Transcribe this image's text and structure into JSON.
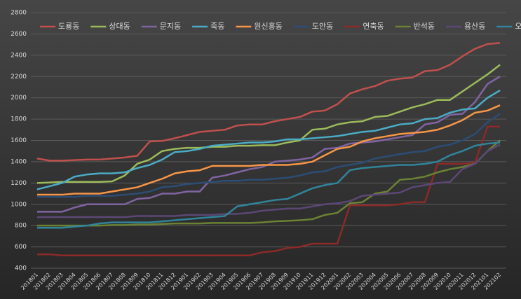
{
  "chart_data": {
    "type": "line",
    "categories": [
      "201801",
      "201802",
      "201803",
      "201804",
      "201805",
      "201806",
      "201807",
      "201808",
      "201809",
      "201810",
      "201811",
      "201812",
      "201901",
      "201902",
      "201903",
      "201904",
      "201905",
      "201906",
      "201907",
      "201908",
      "201909",
      "201910",
      "201911",
      "201912",
      "202001",
      "202002",
      "202003",
      "202004",
      "202005",
      "202006",
      "202007",
      "202008",
      "202009",
      "202010",
      "202011",
      "202012",
      "202101",
      "202102"
    ],
    "ylim": [
      400,
      2800
    ],
    "yticks": [
      400,
      600,
      800,
      1000,
      1200,
      1400,
      1600,
      1800,
      2000,
      2200,
      2400,
      2600,
      2800
    ],
    "grid": true,
    "legend": "top",
    "series": [
      {
        "name": "도룡동",
        "color": "#c0504d",
        "values": [
          1430,
          1410,
          1410,
          1415,
          1420,
          1420,
          1430,
          1440,
          1455,
          1590,
          1595,
          1620,
          1650,
          1680,
          1690,
          1700,
          1740,
          1750,
          1750,
          1780,
          1800,
          1820,
          1870,
          1880,
          1940,
          2040,
          2080,
          2110,
          2160,
          2180,
          2190,
          2250,
          2260,
          2310,
          2390,
          2460,
          2505,
          2515
        ]
      },
      {
        "name": "상대동",
        "color": "#9bbb59",
        "values": [
          1200,
          1205,
          1210,
          1210,
          1210,
          1210,
          1215,
          1270,
          1380,
          1420,
          1500,
          1520,
          1530,
          1530,
          1540,
          1540,
          1550,
          1550,
          1555,
          1555,
          1580,
          1600,
          1700,
          1710,
          1750,
          1770,
          1780,
          1820,
          1830,
          1870,
          1910,
          1940,
          1980,
          1980,
          2060,
          2140,
          2220,
          2310
        ]
      },
      {
        "name": "문지동",
        "color": "#8064a2",
        "values": [
          930,
          930,
          930,
          970,
          1000,
          1000,
          1000,
          1000,
          1050,
          1060,
          1100,
          1100,
          1120,
          1120,
          1250,
          1270,
          1300,
          1330,
          1350,
          1400,
          1410,
          1420,
          1440,
          1520,
          1530,
          1570,
          1580,
          1590,
          1610,
          1630,
          1650,
          1750,
          1770,
          1840,
          1850,
          1960,
          2130,
          2200
        ]
      },
      {
        "name": "죽동",
        "color": "#4bacc6",
        "values": [
          1140,
          1170,
          1200,
          1260,
          1280,
          1290,
          1290,
          1300,
          1340,
          1370,
          1420,
          1490,
          1500,
          1520,
          1550,
          1560,
          1570,
          1580,
          1580,
          1590,
          1610,
          1610,
          1620,
          1630,
          1640,
          1660,
          1680,
          1690,
          1720,
          1750,
          1760,
          1800,
          1810,
          1860,
          1890,
          1900,
          2000,
          2070
        ]
      },
      {
        "name": "원신흥동",
        "color": "#f79646",
        "values": [
          1090,
          1090,
          1090,
          1100,
          1100,
          1100,
          1120,
          1140,
          1160,
          1200,
          1240,
          1290,
          1310,
          1320,
          1360,
          1360,
          1360,
          1360,
          1370,
          1370,
          1370,
          1380,
          1400,
          1460,
          1520,
          1540,
          1590,
          1620,
          1640,
          1660,
          1670,
          1680,
          1700,
          1740,
          1790,
          1860,
          1880,
          1930
        ]
      },
      {
        "name": "도안동",
        "color": "#2c4d75",
        "values": [
          1070,
          1070,
          1070,
          1070,
          1080,
          1080,
          1080,
          1090,
          1100,
          1120,
          1160,
          1170,
          1190,
          1200,
          1210,
          1220,
          1220,
          1230,
          1230,
          1240,
          1250,
          1270,
          1300,
          1310,
          1350,
          1370,
          1390,
          1430,
          1450,
          1470,
          1490,
          1500,
          1540,
          1560,
          1600,
          1660,
          1770,
          1850
        ]
      },
      {
        "name": "연축동",
        "color": "#8b2a28",
        "values": [
          530,
          530,
          520,
          520,
          520,
          520,
          520,
          520,
          520,
          520,
          520,
          520,
          520,
          520,
          520,
          520,
          520,
          520,
          550,
          560,
          590,
          600,
          630,
          630,
          630,
          990,
          990,
          990,
          990,
          1000,
          1020,
          1020,
          1380,
          1380,
          1380,
          1390,
          1730,
          1730
        ]
      },
      {
        "name": "반석동",
        "color": "#6b8234",
        "values": [
          800,
          800,
          800,
          800,
          800,
          800,
          805,
          805,
          810,
          810,
          815,
          820,
          820,
          820,
          825,
          825,
          825,
          825,
          830,
          840,
          845,
          850,
          860,
          900,
          920,
          1010,
          1020,
          1100,
          1120,
          1230,
          1240,
          1260,
          1300,
          1330,
          1350,
          1380,
          1500,
          1600
        ]
      },
      {
        "name": "용산동",
        "color": "#5c4776",
        "values": [
          880,
          880,
          880,
          880,
          880,
          880,
          880,
          880,
          890,
          890,
          890,
          890,
          900,
          900,
          900,
          910,
          910,
          920,
          940,
          950,
          960,
          960,
          980,
          1000,
          1010,
          1030,
          1080,
          1090,
          1100,
          1110,
          1160,
          1180,
          1200,
          1210,
          1330,
          1380,
          1500,
          1560
        ]
      },
      {
        "name": "오류동",
        "color": "#31849b",
        "values": [
          780,
          780,
          780,
          790,
          800,
          820,
          830,
          830,
          830,
          830,
          840,
          850,
          860,
          870,
          880,
          890,
          980,
          1000,
          1020,
          1040,
          1050,
          1100,
          1150,
          1180,
          1200,
          1320,
          1340,
          1350,
          1360,
          1370,
          1370,
          1380,
          1400,
          1460,
          1500,
          1550,
          1570,
          1580
        ]
      }
    ]
  }
}
